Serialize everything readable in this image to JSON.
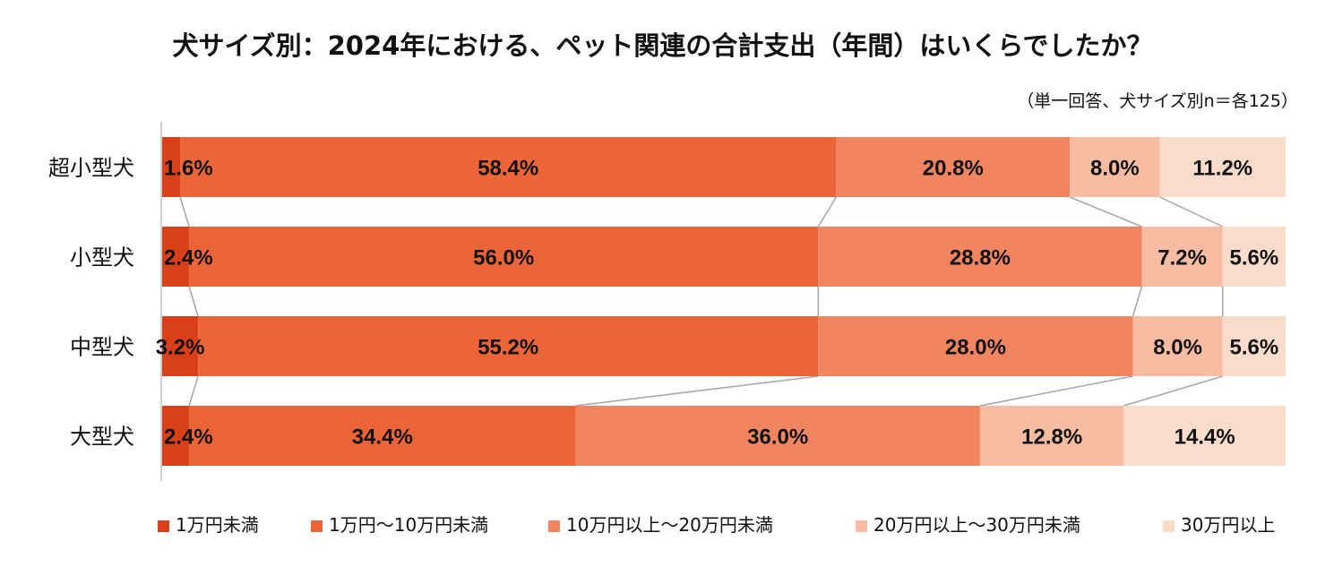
{
  "chart_data": {
    "type": "bar",
    "orientation": "horizontal",
    "stacked": "percent",
    "title": "犬サイズ別：2024年における、ペット関連の合計支出（年間）はいくらでしたか？",
    "subtitle": "（単一回答、犬サイズ別n＝各125）",
    "categories": [
      "超小型犬",
      "小型犬",
      "中型犬",
      "大型犬"
    ],
    "series": [
      {
        "name": "1万円未満",
        "color": "#d9401a",
        "values": [
          1.6,
          2.4,
          3.2,
          2.4
        ]
      },
      {
        "name": "1万円～10万円未満",
        "color": "#ec6538",
        "values": [
          58.4,
          56.0,
          55.2,
          34.4
        ]
      },
      {
        "name": "10万円以上～20万円未満",
        "color": "#f08560",
        "values": [
          20.8,
          28.8,
          28.0,
          36.0
        ]
      },
      {
        "name": "20万円以上～30万円未満",
        "color": "#f7bca2",
        "values": [
          8.0,
          7.2,
          8.0,
          12.8
        ]
      },
      {
        "name": "30万円以上",
        "color": "#fadcca",
        "values": [
          11.2,
          5.6,
          5.6,
          14.4
        ]
      }
    ],
    "value_suffix": "%",
    "xlim": [
      0,
      100
    ],
    "legend_position": "bottom",
    "series_lines": true,
    "grid": false
  }
}
